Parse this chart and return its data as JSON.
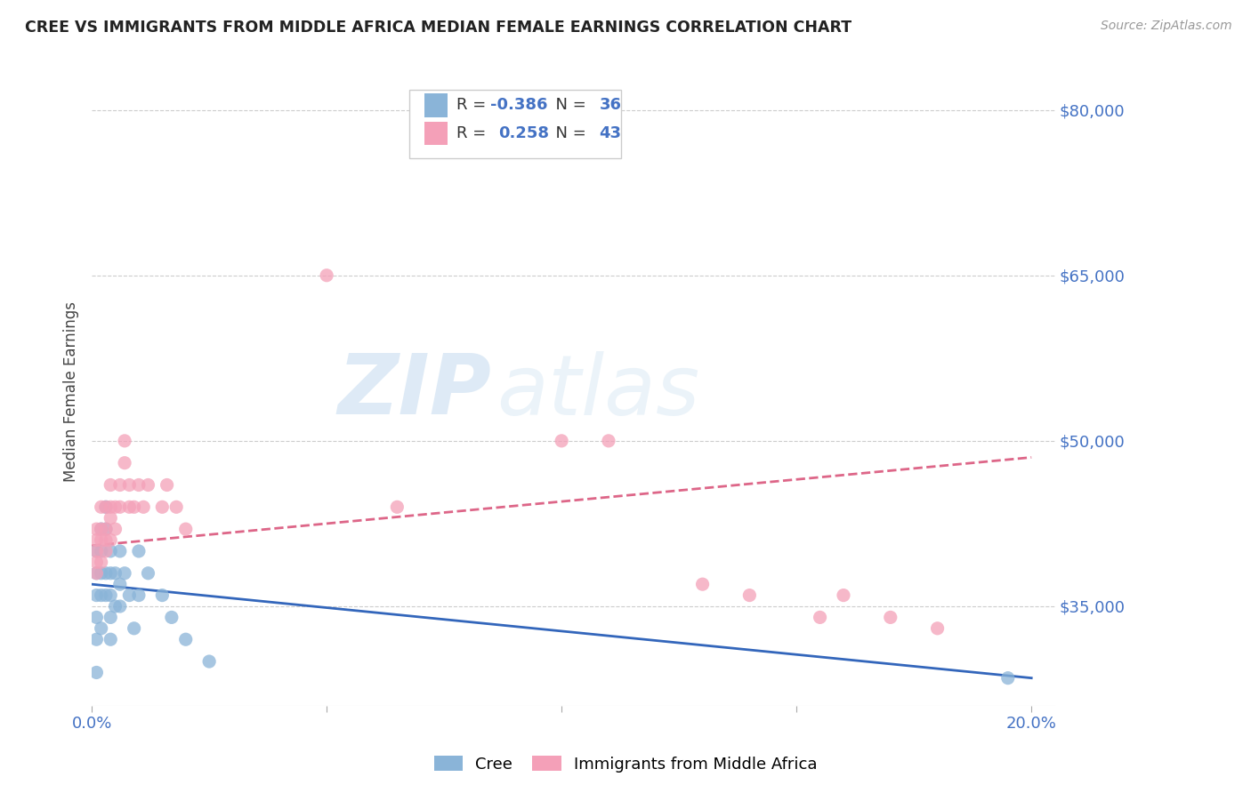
{
  "title": "CREE VS IMMIGRANTS FROM MIDDLE AFRICA MEDIAN FEMALE EARNINGS CORRELATION CHART",
  "source": "Source: ZipAtlas.com",
  "ylabel": "Median Female Earnings",
  "xlim": [
    0.0,
    0.205
  ],
  "ylim": [
    26000,
    83000
  ],
  "yticks": [
    35000,
    50000,
    65000,
    80000
  ],
  "ytick_labels": [
    "$35,000",
    "$50,000",
    "$65,000",
    "$80,000"
  ],
  "xticks": [
    0.0,
    0.05,
    0.1,
    0.15,
    0.2
  ],
  "xtick_labels": [
    "0.0%",
    "",
    "",
    "",
    "20.0%"
  ],
  "legend_R_cree": "-0.386",
  "legend_N_cree": "36",
  "legend_R_immig": "0.258",
  "legend_N_immig": "43",
  "legend_label_cree": "Cree",
  "legend_label_immig": "Immigrants from Middle Africa",
  "cree_color": "#8ab4d8",
  "immig_color": "#f4a0b8",
  "trend_cree_color": "#3366bb",
  "trend_immig_color": "#dd6688",
  "watermark_zip": "ZIP",
  "watermark_atlas": "atlas",
  "background_color": "#ffffff",
  "grid_color": "#cccccc",
  "axis_color": "#4472c4",
  "cree_x": [
    0.001,
    0.001,
    0.001,
    0.001,
    0.001,
    0.001,
    0.002,
    0.002,
    0.002,
    0.002,
    0.002,
    0.003,
    0.003,
    0.003,
    0.003,
    0.004,
    0.004,
    0.004,
    0.004,
    0.004,
    0.005,
    0.005,
    0.006,
    0.006,
    0.006,
    0.007,
    0.008,
    0.009,
    0.01,
    0.01,
    0.012,
    0.015,
    0.017,
    0.02,
    0.025,
    0.195
  ],
  "cree_y": [
    40000,
    38000,
    36000,
    34000,
    32000,
    29000,
    42000,
    40000,
    38000,
    36000,
    33000,
    44000,
    42000,
    38000,
    36000,
    40000,
    38000,
    36000,
    34000,
    32000,
    38000,
    35000,
    40000,
    37000,
    35000,
    38000,
    36000,
    33000,
    40000,
    36000,
    38000,
    36000,
    34000,
    32000,
    30000,
    28500
  ],
  "immig_x": [
    0.001,
    0.001,
    0.001,
    0.001,
    0.001,
    0.002,
    0.002,
    0.002,
    0.002,
    0.003,
    0.003,
    0.003,
    0.003,
    0.004,
    0.004,
    0.004,
    0.004,
    0.005,
    0.005,
    0.006,
    0.006,
    0.007,
    0.007,
    0.008,
    0.008,
    0.009,
    0.01,
    0.011,
    0.012,
    0.015,
    0.016,
    0.018,
    0.02,
    0.05,
    0.065,
    0.1,
    0.11,
    0.13,
    0.14,
    0.155,
    0.16,
    0.17,
    0.18
  ],
  "immig_y": [
    42000,
    41000,
    40000,
    39000,
    38000,
    44000,
    42000,
    41000,
    39000,
    44000,
    42000,
    41000,
    40000,
    46000,
    44000,
    43000,
    41000,
    44000,
    42000,
    46000,
    44000,
    50000,
    48000,
    46000,
    44000,
    44000,
    46000,
    44000,
    46000,
    44000,
    46000,
    44000,
    42000,
    65000,
    44000,
    50000,
    50000,
    37000,
    36000,
    34000,
    36000,
    34000,
    33000
  ]
}
